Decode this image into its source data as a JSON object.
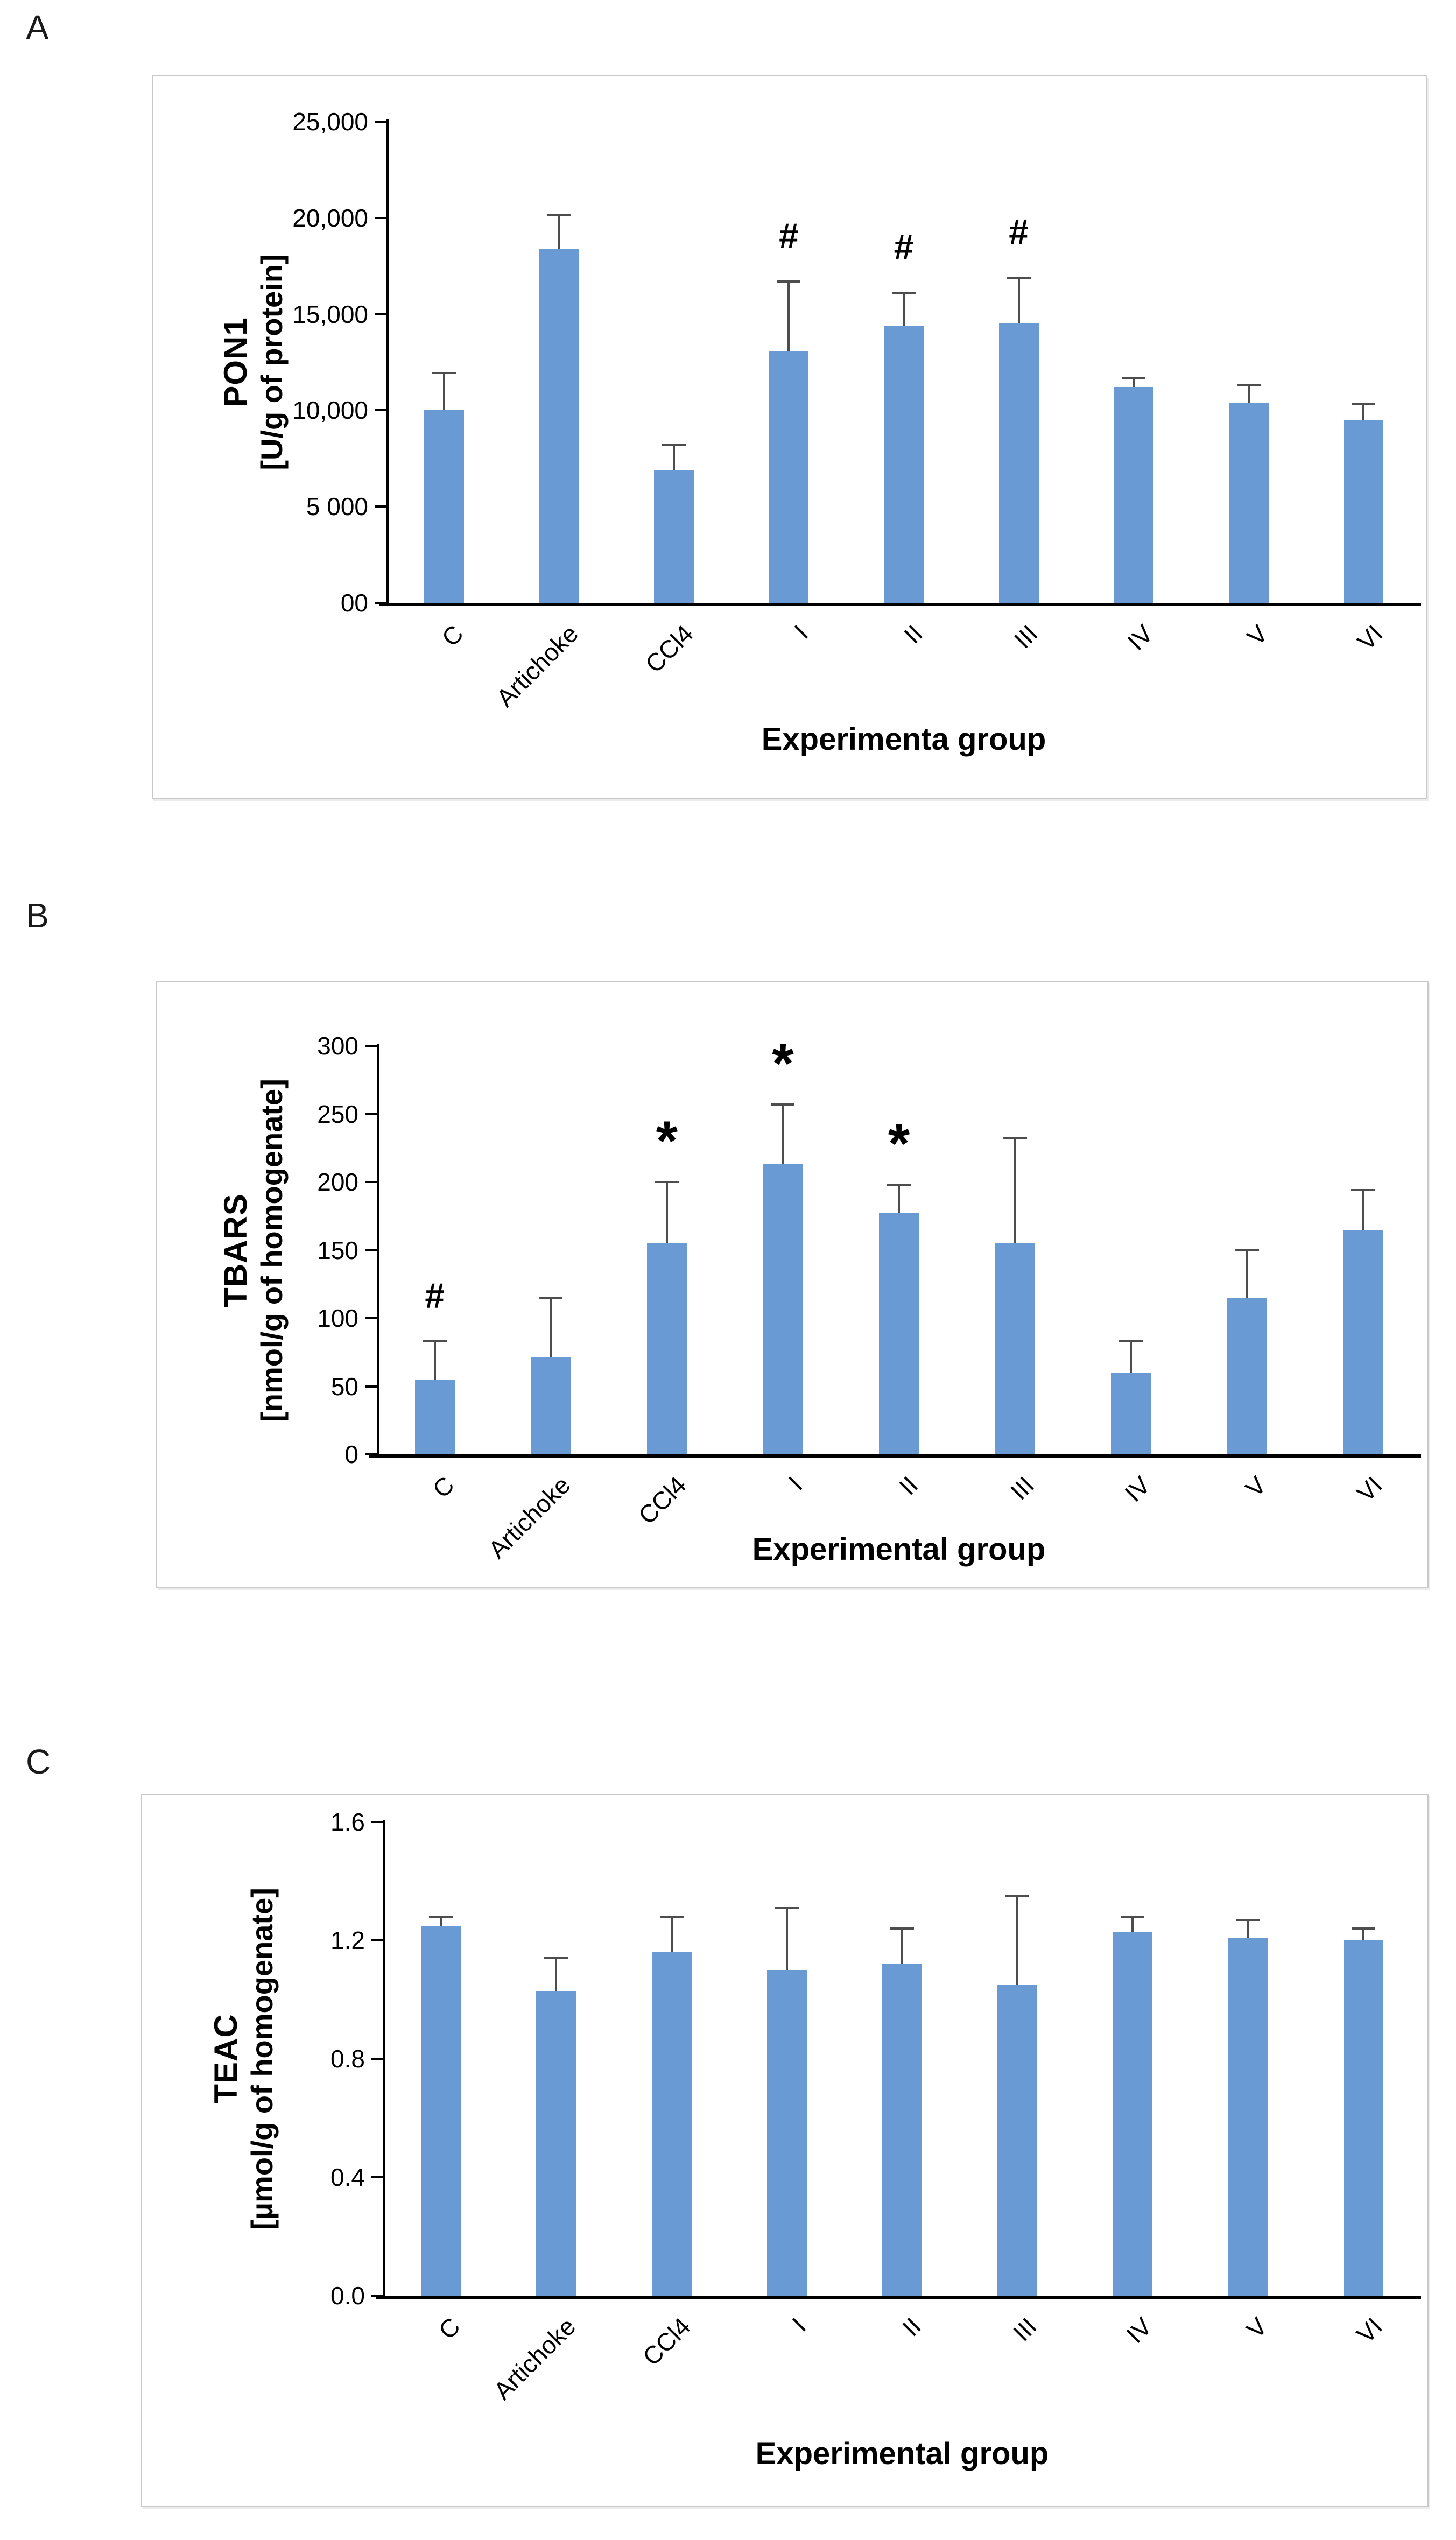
{
  "figure_title": "",
  "panels_order": [
    "A",
    "B",
    "C"
  ],
  "chart_data": [
    {
      "type": "bar",
      "panel_label": "A",
      "ylabel_line1": "PON1",
      "ylabel_line2": "[U/g of protein]",
      "xlabel": "Experimenta group",
      "categories": [
        "C",
        "Artichoke",
        "CCl4",
        "I",
        "II",
        "III",
        "IV",
        "V",
        "VI"
      ],
      "values": [
        10050,
        18400,
        6900,
        13100,
        14400,
        14500,
        11200,
        10400,
        9500
      ],
      "errors_up": [
        1900,
        1750,
        1300,
        3600,
        1700,
        2400,
        500,
        900,
        850
      ],
      "annotations": [
        "",
        "",
        "",
        "#",
        "#",
        "#",
        "",
        "",
        ""
      ],
      "ylim": [
        0,
        25000
      ],
      "ytick_labels_bottom_to_top": [
        "00",
        "5 000",
        "10,000",
        "15,000",
        "20,000",
        "25,000"
      ],
      "grid": false,
      "legend": null,
      "bar_color": "#6a9ad3",
      "error_color": "#4d4d4d"
    },
    {
      "type": "bar",
      "panel_label": "B",
      "ylabel_line1": "TBARS",
      "ylabel_line2": "[nmol/g of homogenate]",
      "xlabel": "Experimental group",
      "categories": [
        "C",
        "Artichoke",
        "CCl4",
        "I",
        "II",
        "III",
        "IV",
        "V",
        "VI"
      ],
      "values": [
        55,
        71,
        155,
        213,
        177,
        155,
        60,
        115,
        165
      ],
      "errors_up": [
        28,
        44,
        45,
        44,
        21,
        77,
        23,
        35,
        29
      ],
      "annotations": [
        "#",
        "",
        "*",
        "*",
        "*",
        "",
        "",
        "",
        ""
      ],
      "ylim": [
        0,
        300
      ],
      "ytick_labels_bottom_to_top": [
        "0",
        "50",
        "100",
        "150",
        "200",
        "250",
        "300"
      ],
      "grid": false,
      "legend": null,
      "bar_color": "#6a9ad3",
      "error_color": "#4d4d4d"
    },
    {
      "type": "bar",
      "panel_label": "C",
      "ylabel_line1": "TEAC",
      "ylabel_line2": "[µmol/g of homogenate]",
      "xlabel": "Experimental group",
      "categories": [
        "C",
        "Artichoke",
        "CCl4",
        "I",
        "II",
        "III",
        "IV",
        "V",
        "VI"
      ],
      "values": [
        1.25,
        1.03,
        1.16,
        1.1,
        1.12,
        1.05,
        1.23,
        1.21,
        1.2
      ],
      "errors_up": [
        0.03,
        0.11,
        0.12,
        0.21,
        0.12,
        0.3,
        0.05,
        0.06,
        0.04
      ],
      "annotations": [
        "",
        "",
        "",
        "",
        "",
        "",
        "",
        "",
        ""
      ],
      "ylim": [
        0,
        1.6
      ],
      "ytick_labels_bottom_to_top": [
        "0.0",
        "0.4",
        "0.8",
        "1.2",
        "1.6"
      ],
      "grid": false,
      "legend": null,
      "bar_color": "#6a9ad3",
      "error_color": "#4d4d4d"
    }
  ]
}
